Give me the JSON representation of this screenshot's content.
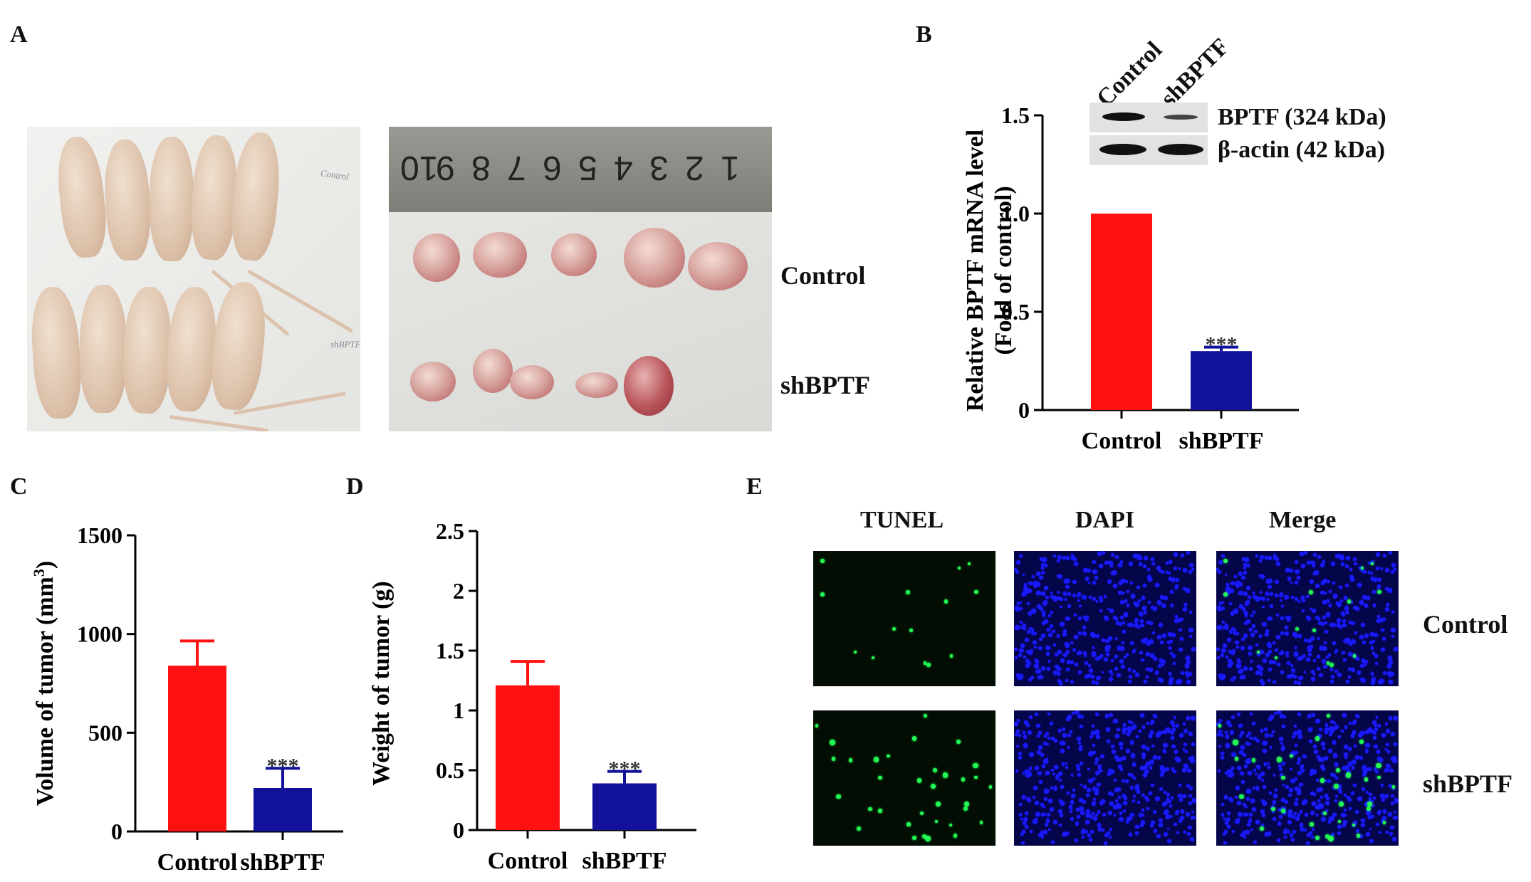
{
  "panels": {
    "a": "A",
    "b": "B",
    "c": "C",
    "d": "D",
    "e": "E"
  },
  "panel_a": {
    "handwritten_top": "Control",
    "handwritten_bottom": "shBPTF",
    "ruler_numbers": [
      "10",
      "9",
      "8",
      "7",
      "6",
      "5",
      "4",
      "3",
      "2",
      "1"
    ],
    "row_labels": [
      "Control",
      "shBPTF"
    ]
  },
  "panel_b": {
    "lane_labels": [
      "Control",
      "shBPTF"
    ],
    "blot_labels": [
      "BPTF (324 kDa)",
      "β-actin (42 kDa)"
    ]
  },
  "panel_e": {
    "column_labels": [
      "TUNEL",
      "DAPI",
      "Merge"
    ],
    "row_labels": [
      "Control",
      "shBPTF"
    ]
  },
  "colors": {
    "control": "#ff1111",
    "shbptf": "#11119a",
    "tunel": "#22ff55",
    "dapi": "#1a1aff"
  },
  "chart_data": [
    {
      "id": "B",
      "type": "bar",
      "categories": [
        "Control",
        "shBPTF"
      ],
      "values": [
        1.0,
        0.3
      ],
      "errors": [
        0,
        0.02
      ],
      "significance": [
        "",
        "***"
      ],
      "ylabel_line1": "Relative BPTF mRNA level",
      "ylabel_line2": "(Fold of control)",
      "ylim": [
        0,
        1.5
      ],
      "yticks": [
        0,
        0.5,
        1.0,
        1.5
      ],
      "ytick_labels": [
        "0",
        "0.5",
        "1.0",
        "1.5"
      ]
    },
    {
      "id": "C",
      "type": "bar",
      "categories": [
        "Control",
        "shBPTF"
      ],
      "values": [
        840,
        220
      ],
      "errors": [
        125,
        100
      ],
      "significance": [
        "",
        "***"
      ],
      "ylabel": "Volume of tumor (mm",
      "ylabel_sup": "3",
      "ylabel_end": ")",
      "ylim": [
        0,
        1500
      ],
      "yticks": [
        0,
        500,
        1000,
        1500
      ],
      "ytick_labels": [
        "0",
        "500",
        "1000",
        "1500"
      ]
    },
    {
      "id": "D",
      "type": "bar",
      "categories": [
        "Control",
        "shBPTF"
      ],
      "values": [
        1.21,
        0.39
      ],
      "errors": [
        0.2,
        0.1
      ],
      "significance": [
        "",
        "***"
      ],
      "ylabel": "Weight of tumor (g)",
      "ylim": [
        0,
        2.5
      ],
      "yticks": [
        0,
        0.5,
        1,
        1.5,
        2,
        2.5
      ],
      "ytick_labels": [
        "0",
        "0.5",
        "1",
        "1.5",
        "2",
        "2.5"
      ]
    }
  ]
}
